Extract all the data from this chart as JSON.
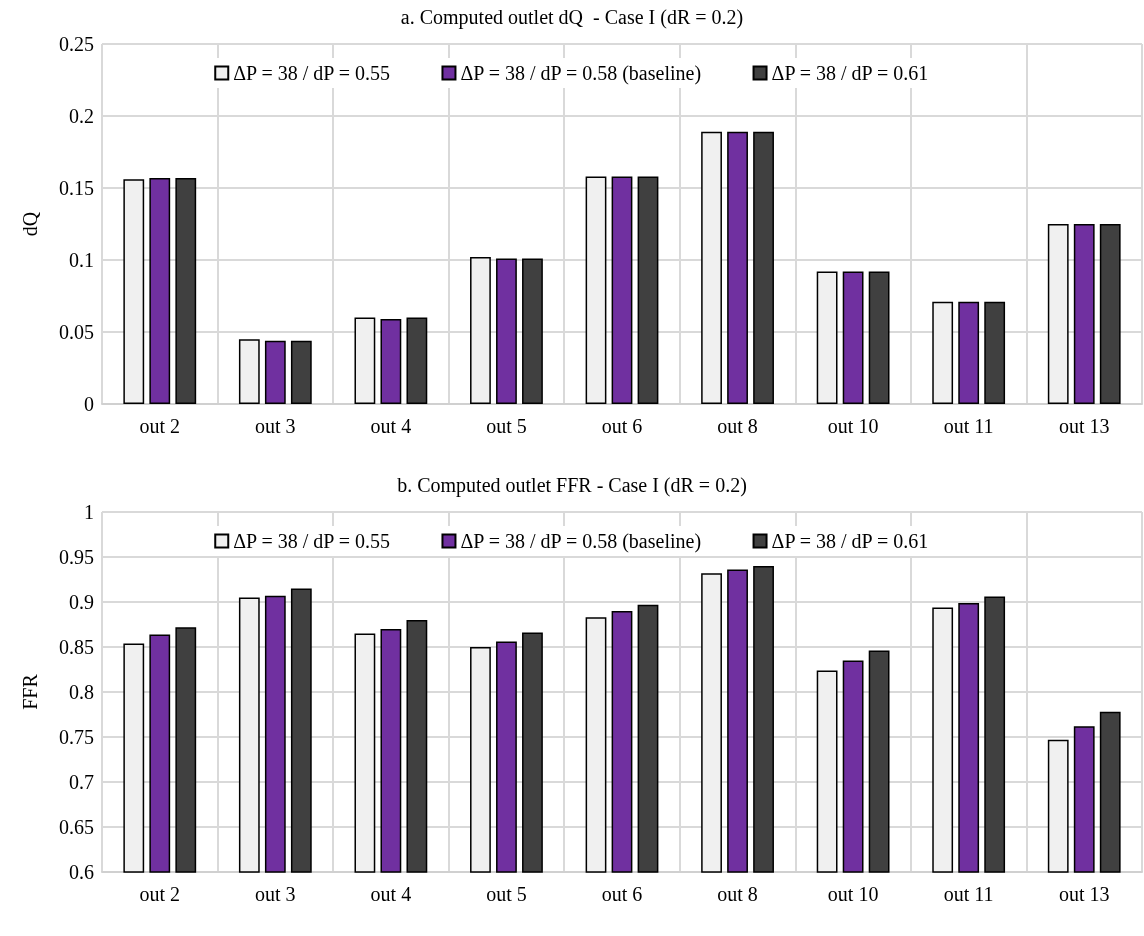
{
  "chart_data": [
    {
      "type": "bar",
      "title": "a. Computed outlet dQ  - Case I (dR = 0.2)",
      "ylabel": "dQ",
      "categories": [
        "out 2",
        "out 3",
        "out 4",
        "out 5",
        "out 6",
        "out 8",
        "out 10",
        "out 11",
        "out 13"
      ],
      "series": [
        {
          "name": "ΔP = 38 / dP = 0.55",
          "color": "#f0f0f0",
          "values": [
            0.156,
            0.045,
            0.06,
            0.102,
            0.158,
            0.189,
            0.092,
            0.071,
            0.125
          ]
        },
        {
          "name": "ΔP = 38 / dP = 0.58 (baseline)",
          "color": "#7030a0",
          "values": [
            0.157,
            0.044,
            0.059,
            0.101,
            0.158,
            0.189,
            0.092,
            0.071,
            0.125
          ]
        },
        {
          "name": "ΔP = 38 / dP = 0.61",
          "color": "#404040",
          "values": [
            0.157,
            0.044,
            0.06,
            0.101,
            0.158,
            0.189,
            0.092,
            0.071,
            0.125
          ]
        }
      ],
      "ylim": [
        0,
        0.25
      ],
      "yticks": [
        0,
        0.05,
        0.1,
        0.15,
        0.2,
        0.25
      ],
      "grid": true,
      "legend": "top"
    },
    {
      "type": "bar",
      "title": "b. Computed outlet FFR - Case I (dR = 0.2)",
      "ylabel": "FFR",
      "categories": [
        "out 2",
        "out 3",
        "out 4",
        "out 5",
        "out 6",
        "out 8",
        "out 10",
        "out 11",
        "out 13"
      ],
      "series": [
        {
          "name": "ΔP = 38 / dP = 0.55",
          "color": "#f0f0f0",
          "values": [
            0.854,
            0.905,
            0.865,
            0.85,
            0.883,
            0.932,
            0.824,
            0.894,
            0.747
          ]
        },
        {
          "name": "ΔP = 38 / dP = 0.58 (baseline)",
          "color": "#7030a0",
          "values": [
            0.864,
            0.907,
            0.87,
            0.856,
            0.89,
            0.936,
            0.835,
            0.899,
            0.762
          ]
        },
        {
          "name": "ΔP = 38 / dP = 0.61",
          "color": "#404040",
          "values": [
            0.872,
            0.915,
            0.88,
            0.866,
            0.897,
            0.94,
            0.846,
            0.906,
            0.778
          ]
        }
      ],
      "ylim": [
        0.6,
        1
      ],
      "yticks": [
        0.6,
        0.65,
        0.7,
        0.75,
        0.8,
        0.85,
        0.9,
        0.95,
        1
      ],
      "grid": true,
      "legend": "top"
    }
  ]
}
